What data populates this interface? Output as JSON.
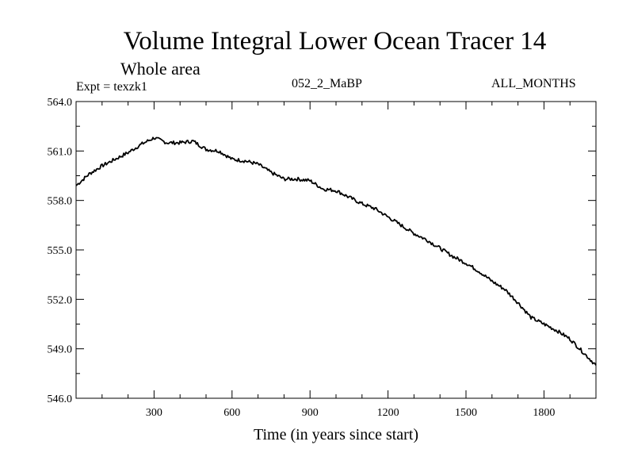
{
  "chart_data": {
    "type": "line",
    "title": "Volume Integral Lower Ocean Tracer 14",
    "subtitle": "Whole area",
    "experiment_label": "Expt = texzk1",
    "period_label": "052_2_MaBP",
    "months_label": "ALL_MONTHS",
    "xlabel": "Time (in years since start)",
    "ylabel": "",
    "xlim": [
      0,
      2000
    ],
    "ylim": [
      546.0,
      564.0
    ],
    "x_ticks": [
      300,
      600,
      900,
      1200,
      1500,
      1800
    ],
    "x_tick_labels": [
      "300",
      "600",
      "900",
      "1200",
      "1500",
      "1800"
    ],
    "y_ticks": [
      546.0,
      549.0,
      552.0,
      555.0,
      558.0,
      561.0,
      564.0
    ],
    "y_tick_labels": [
      "546.0",
      "549.0",
      "552.0",
      "555.0",
      "558.0",
      "561.0",
      "564.0"
    ],
    "series": [
      {
        "name": "Lower Ocean Tracer 14",
        "color": "#000000",
        "x": [
          0,
          50,
          100,
          150,
          200,
          250,
          300,
          350,
          400,
          450,
          500,
          550,
          600,
          650,
          700,
          750,
          800,
          850,
          900,
          950,
          1000,
          1050,
          1100,
          1150,
          1200,
          1250,
          1300,
          1350,
          1400,
          1450,
          1500,
          1550,
          1600,
          1650,
          1700,
          1750,
          1800,
          1850,
          1900,
          1950,
          2000
        ],
        "values": [
          558.9,
          559.6,
          560.1,
          560.5,
          560.9,
          561.4,
          561.8,
          561.5,
          561.5,
          561.6,
          561.1,
          561.0,
          560.5,
          560.4,
          560.2,
          559.7,
          559.3,
          559.3,
          559.2,
          558.7,
          558.6,
          558.2,
          557.8,
          557.5,
          557.0,
          556.5,
          556.0,
          555.6,
          555.1,
          554.6,
          554.2,
          553.7,
          553.1,
          552.6,
          551.8,
          550.9,
          550.5,
          550.1,
          549.6,
          548.8,
          548.0
        ]
      }
    ]
  }
}
